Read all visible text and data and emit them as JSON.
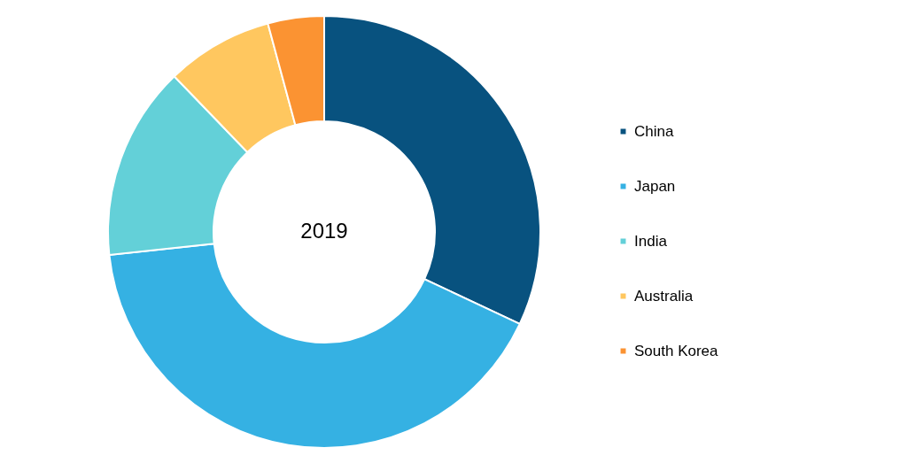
{
  "chart_data": {
    "type": "donut",
    "categories": [
      "China",
      "Japan",
      "India",
      "Australia",
      "South Korea"
    ],
    "values": [
      32,
      41.3,
      14.5,
      8,
      4.2
    ],
    "colors": [
      "#08527f",
      "#35b1e3",
      "#63d0d8",
      "#ffc75f",
      "#fb9332"
    ],
    "annotations": [
      "2019"
    ],
    "legend": "right"
  }
}
